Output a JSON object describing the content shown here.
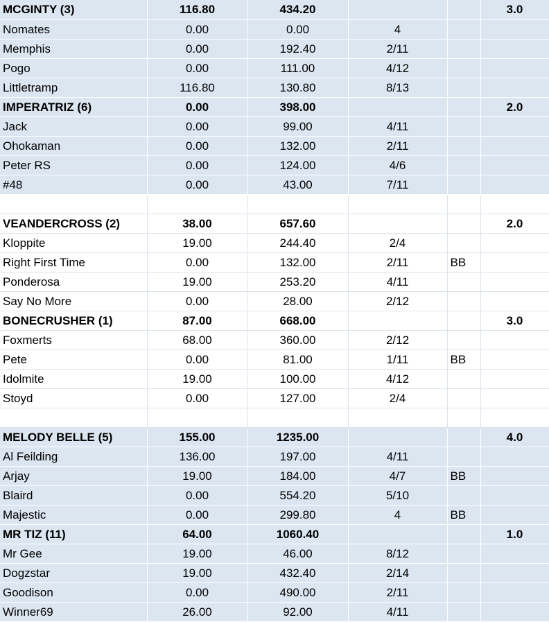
{
  "colors": {
    "shaded_fill": "#dce6f1",
    "plain_fill": "#ffffff",
    "text": "#000000"
  },
  "groups": [
    {
      "shaded": true,
      "teams": [
        {
          "header": [
            "MCGINTY (3)",
            "116.80",
            "434.20",
            "",
            "",
            "3.0"
          ],
          "rows": [
            [
              "Nomates",
              "0.00",
              "0.00",
              "4",
              "",
              ""
            ],
            [
              "Memphis",
              "0.00",
              "192.40",
              "2/11",
              "",
              ""
            ],
            [
              "Pogo",
              "0.00",
              "111.00",
              "4/12",
              "",
              ""
            ],
            [
              "Littletramp",
              "116.80",
              "130.80",
              "8/13",
              "",
              ""
            ]
          ]
        },
        {
          "header": [
            "IMPERATRIZ (6)",
            "0.00",
            "398.00",
            "",
            "",
            "2.0"
          ],
          "rows": [
            [
              "Jack",
              "0.00",
              "99.00",
              "4/11",
              "",
              ""
            ],
            [
              "Ohokaman",
              "0.00",
              "132.00",
              "2/11",
              "",
              ""
            ],
            [
              "Peter RS",
              "0.00",
              "124.00",
              "4/6",
              "",
              ""
            ],
            [
              "#48",
              "0.00",
              "43.00",
              "7/11",
              "",
              ""
            ]
          ]
        }
      ]
    },
    {
      "shaded": false,
      "teams": [
        {
          "header": [
            "VEANDERCROSS (2)",
            "38.00",
            "657.60",
            "",
            "",
            "2.0"
          ],
          "rows": [
            [
              "Kloppite",
              "19.00",
              "244.40",
              "2/4",
              "",
              ""
            ],
            [
              "Right First Time",
              "0.00",
              "132.00",
              "2/11",
              "BB",
              ""
            ],
            [
              "Ponderosa",
              "19.00",
              "253.20",
              "4/11",
              "",
              ""
            ],
            [
              "Say No More",
              "0.00",
              "28.00",
              "2/12",
              "",
              ""
            ]
          ]
        },
        {
          "header": [
            "BONECRUSHER (1)",
            "87.00",
            "668.00",
            "",
            "",
            "3.0"
          ],
          "rows": [
            [
              "Foxmerts",
              "68.00",
              "360.00",
              "2/12",
              "",
              ""
            ],
            [
              "Pete",
              "0.00",
              "81.00",
              "1/11",
              "BB",
              ""
            ],
            [
              "Idolmite",
              "19.00",
              "100.00",
              "4/12",
              "",
              ""
            ],
            [
              "Stoyd",
              "0.00",
              "127.00",
              "2/4",
              "",
              ""
            ]
          ]
        }
      ]
    },
    {
      "shaded": true,
      "teams": [
        {
          "header": [
            "MELODY BELLE (5)",
            "155.00",
            "1235.00",
            "",
            "",
            "4.0"
          ],
          "rows": [
            [
              "Al Feilding",
              "136.00",
              "197.00",
              "4/11",
              "",
              ""
            ],
            [
              "Arjay",
              "19.00",
              "184.00",
              "4/7",
              "BB",
              ""
            ],
            [
              "Blaird",
              "0.00",
              "554.20",
              "5/10",
              "",
              ""
            ],
            [
              "Majestic",
              "0.00",
              "299.80",
              "4",
              "BB",
              ""
            ]
          ]
        },
        {
          "header": [
            "MR TIZ (11)",
            "64.00",
            "1060.40",
            "",
            "",
            "1.0"
          ],
          "rows": [
            [
              "Mr Gee",
              "19.00",
              "46.00",
              "8/12",
              "",
              ""
            ],
            [
              "Dogzstar",
              "19.00",
              "432.40",
              "2/14",
              "",
              ""
            ],
            [
              "Goodison",
              "0.00",
              "490.00",
              "2/11",
              "",
              ""
            ],
            [
              "Winner69",
              "26.00",
              "92.00",
              "4/11",
              "",
              ""
            ]
          ]
        }
      ]
    }
  ]
}
